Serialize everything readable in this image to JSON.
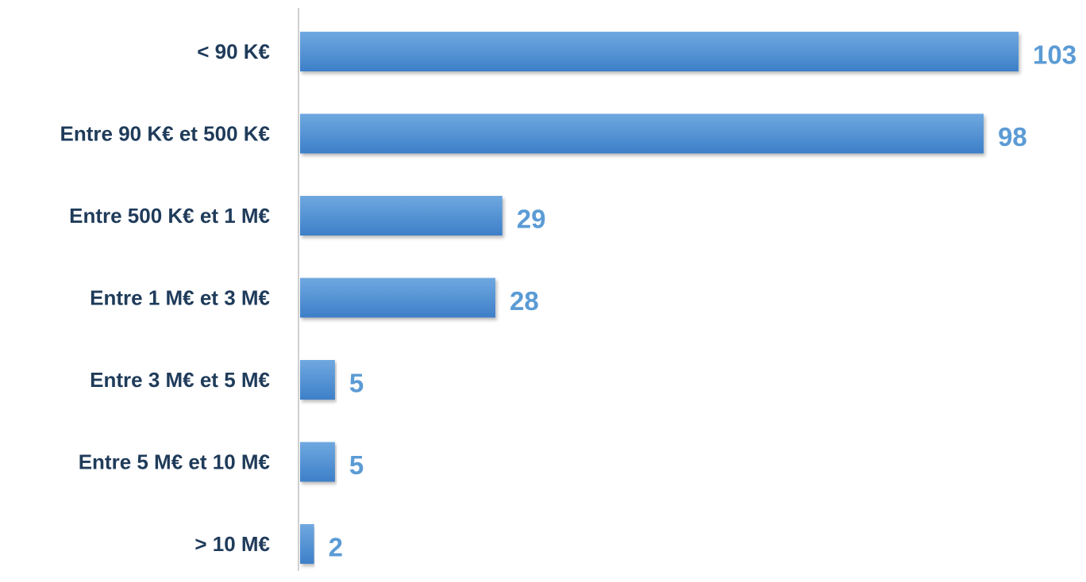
{
  "chart_data": {
    "type": "bar",
    "orientation": "horizontal",
    "categories": [
      "< 90 K€",
      "Entre 90 K€ et 500 K€",
      "Entre 500 K€ et 1 M€",
      "Entre 1 M€ et 3 M€",
      "Entre 3 M€ et 5 M€",
      "Entre 5 M€ et 10 M€",
      "> 10 M€"
    ],
    "values": [
      103,
      98,
      29,
      28,
      5,
      5,
      2
    ],
    "data_labels": [
      "103",
      "98",
      "29",
      "28",
      "5",
      "5",
      "2"
    ],
    "title": "",
    "xlabel": "",
    "ylabel": "",
    "xlim": [
      0,
      103
    ],
    "grid": false,
    "legend": "none",
    "colors": {
      "bar_top": "#6fa8e0",
      "bar_bottom": "#3d7fc8",
      "value_label": "#5b9bd5",
      "category_label": "#1f3b5a",
      "axis": "#d0d0d0"
    }
  }
}
